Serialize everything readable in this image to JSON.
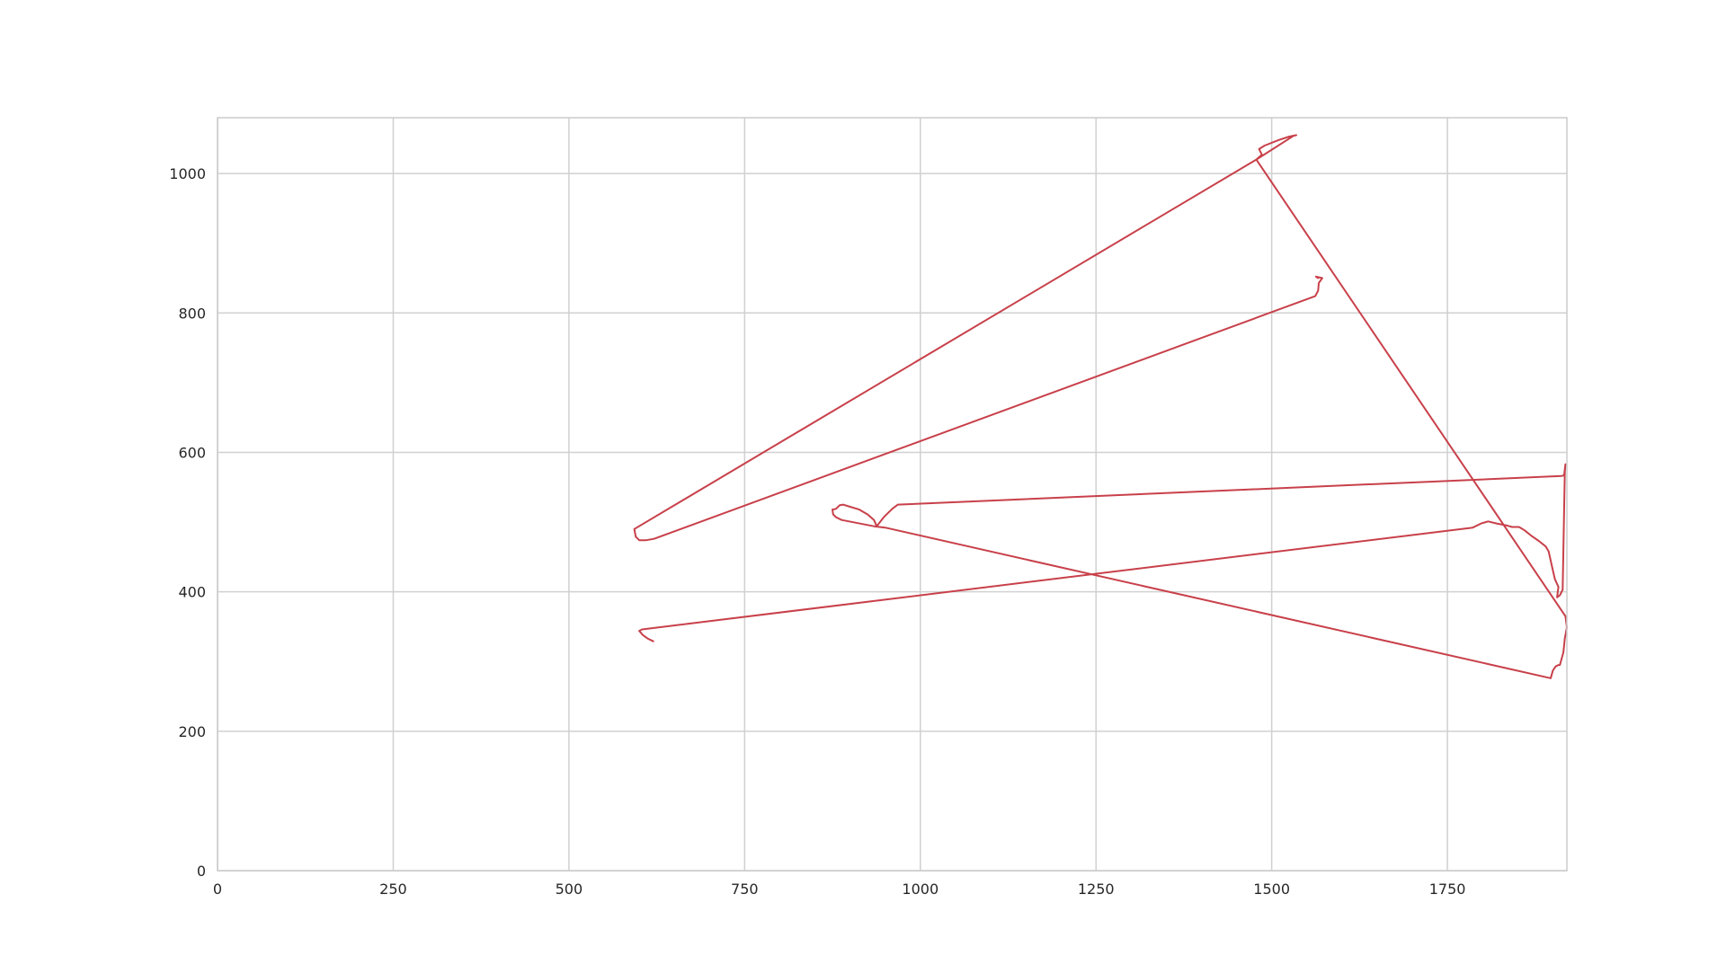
{
  "chart_data": {
    "type": "line",
    "title": "",
    "xlabel": "",
    "ylabel": "",
    "xlim": [
      0,
      1920
    ],
    "ylim": [
      0,
      1080
    ],
    "x_ticks": [
      0,
      250,
      500,
      750,
      1000,
      1250,
      1500,
      1750
    ],
    "y_ticks": [
      0,
      200,
      400,
      600,
      800,
      1000
    ],
    "grid": true,
    "legend": "none",
    "series": [
      {
        "color": "#c8404a",
        "points": [
          [
            620,
            329
          ],
          [
            612,
            333
          ],
          [
            605,
            338
          ],
          [
            600,
            344
          ],
          [
            604,
            346
          ],
          [
            1786,
            492
          ],
          [
            1798,
            498
          ],
          [
            1808,
            501
          ],
          [
            1820,
            498
          ],
          [
            1835,
            495
          ],
          [
            1842,
            493
          ],
          [
            1852,
            493
          ],
          [
            1860,
            488
          ],
          [
            1870,
            480
          ],
          [
            1880,
            473
          ],
          [
            1890,
            465
          ],
          [
            1894,
            458
          ],
          [
            1898,
            440
          ],
          [
            1903,
            418
          ],
          [
            1908,
            407
          ],
          [
            1906,
            392
          ],
          [
            1910,
            395
          ],
          [
            1914,
            403
          ],
          [
            1917,
            572
          ],
          [
            1918,
            583
          ],
          [
            1916,
            567
          ],
          [
            1912,
            566
          ],
          [
            968,
            525
          ],
          [
            960,
            519
          ],
          [
            948,
            507
          ],
          [
            938,
            494
          ],
          [
            934,
            503
          ],
          [
            925,
            511
          ],
          [
            913,
            518
          ],
          [
            900,
            522
          ],
          [
            890,
            525
          ],
          [
            885,
            524
          ],
          [
            880,
            519
          ],
          [
            875,
            518
          ],
          [
            876,
            511
          ],
          [
            880,
            507
          ],
          [
            888,
            503
          ],
          [
            934,
            494
          ],
          [
            950,
            492
          ],
          [
            1897,
            276
          ],
          [
            1900,
            287
          ],
          [
            1904,
            293
          ],
          [
            1908,
            295
          ],
          [
            1910,
            295
          ],
          [
            1915,
            313
          ],
          [
            1917,
            333
          ],
          [
            1920,
            349
          ],
          [
            1918,
            365
          ],
          [
            1478,
            1020
          ],
          [
            1486,
            1027
          ],
          [
            1482,
            1035
          ],
          [
            1490,
            1040
          ],
          [
            1510,
            1048
          ],
          [
            1525,
            1053
          ],
          [
            1535,
            1055
          ],
          [
            1531,
            1054
          ],
          [
            1478,
            1020
          ],
          [
            593,
            490
          ],
          [
            595,
            479
          ],
          [
            600,
            474
          ],
          [
            610,
            474
          ],
          [
            621,
            476
          ],
          [
            1562,
            824
          ],
          [
            1566,
            832
          ],
          [
            1567,
            843
          ],
          [
            1572,
            850
          ],
          [
            1563,
            852
          ],
          [
            1566,
            850
          ]
        ]
      }
    ]
  }
}
